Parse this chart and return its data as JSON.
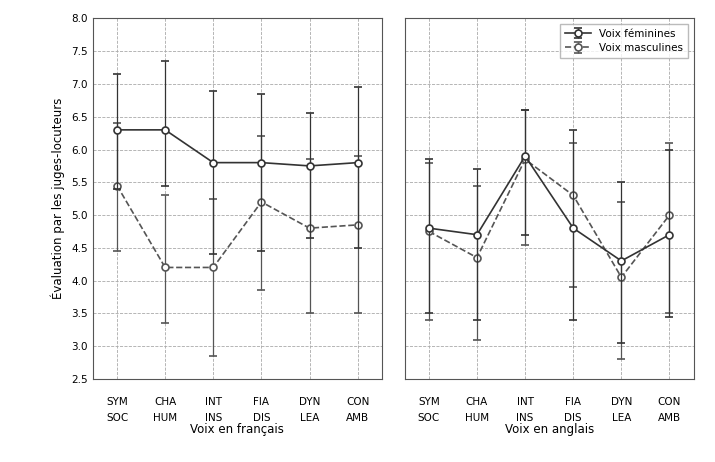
{
  "x_labels_row1": [
    "SYM",
    "CHA",
    "INT",
    "FIA",
    "DYN",
    "CON"
  ],
  "x_labels_row2": [
    "SOC",
    "HUM",
    "INS",
    "DIS",
    "LEA",
    "AMB"
  ],
  "french_fem_y": [
    6.3,
    6.3,
    5.8,
    5.8,
    5.75,
    5.8
  ],
  "french_fem_yerr_low": [
    0.9,
    0.85,
    1.4,
    1.35,
    1.1,
    1.3
  ],
  "french_fem_yerr_high": [
    0.85,
    1.05,
    1.1,
    1.05,
    0.8,
    1.15
  ],
  "french_mas_y": [
    5.45,
    4.2,
    4.2,
    5.2,
    4.8,
    4.85
  ],
  "french_mas_yerr_low": [
    1.0,
    0.85,
    1.35,
    1.35,
    1.3,
    1.35
  ],
  "french_mas_yerr_high": [
    0.95,
    1.1,
    1.05,
    1.0,
    1.05,
    1.05
  ],
  "english_fem_y": [
    4.8,
    4.7,
    5.9,
    4.8,
    4.3,
    4.7
  ],
  "english_fem_yerr_low": [
    1.3,
    1.3,
    1.2,
    1.4,
    1.25,
    1.25
  ],
  "english_fem_yerr_high": [
    1.05,
    1.0,
    0.7,
    1.5,
    1.2,
    1.3
  ],
  "english_mas_y": [
    4.75,
    4.35,
    5.85,
    5.3,
    4.05,
    5.0
  ],
  "english_mas_yerr_low": [
    1.35,
    1.25,
    1.3,
    1.4,
    1.25,
    1.5
  ],
  "english_mas_yerr_high": [
    1.05,
    1.1,
    0.75,
    0.8,
    1.15,
    1.1
  ],
  "ylim": [
    2.5,
    8.0
  ],
  "yticks": [
    2.5,
    3.0,
    3.5,
    4.0,
    4.5,
    5.0,
    5.5,
    6.0,
    6.5,
    7.0,
    7.5,
    8.0
  ],
  "ylabel": "Évaluation par les juges-locuteurs",
  "xlabel_left": "Voix en français",
  "xlabel_right": "Voix en anglais",
  "legend_fem": "Voix féminines",
  "legend_mas": "Voix masculines",
  "line_color_fem": "#333333",
  "line_color_mas": "#555555",
  "bg_color": "#ffffff",
  "grid_color": "#aaaaaa"
}
